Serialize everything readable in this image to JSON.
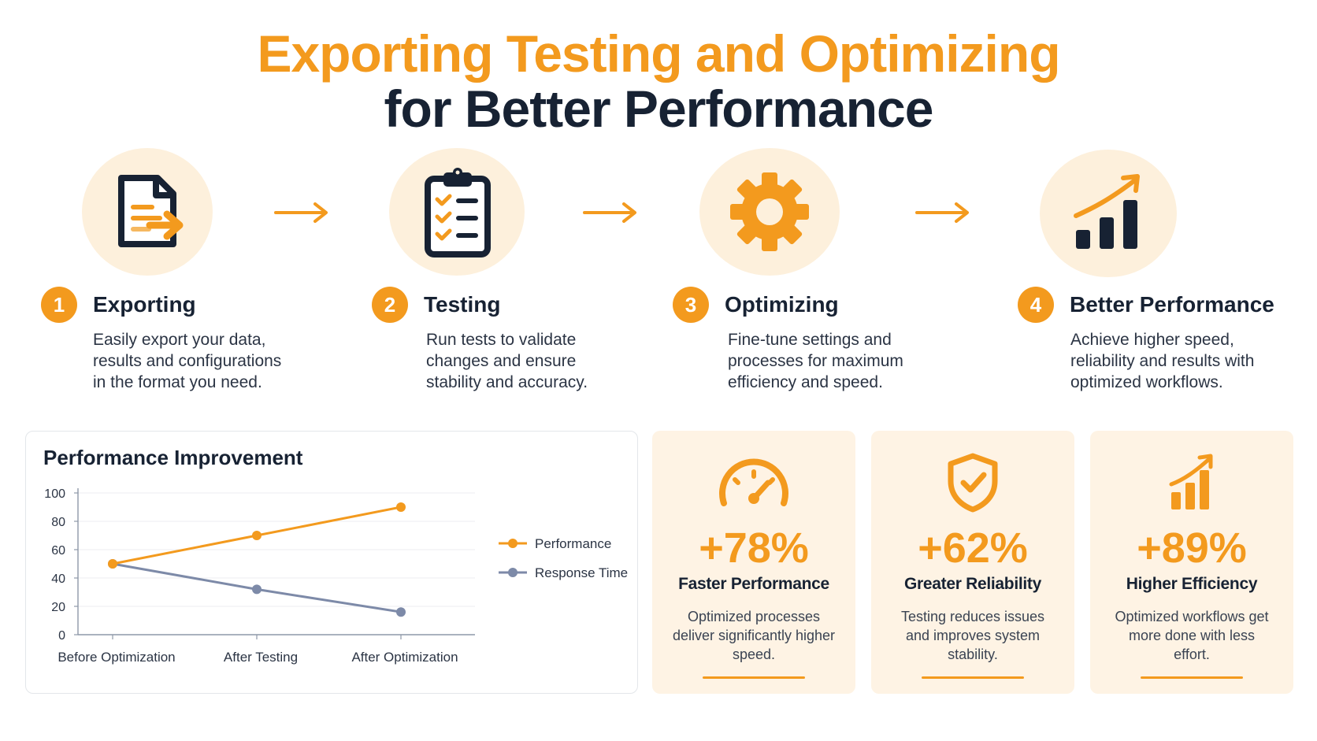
{
  "title": {
    "line1": "Exporting Testing and Optimizing",
    "line2": "for Better Performance"
  },
  "steps": [
    {
      "number": "1",
      "title": "Exporting",
      "icon": "document-export-icon",
      "description": "Easily export your data, results and configurations in the format you need."
    },
    {
      "number": "2",
      "title": "Testing",
      "icon": "clipboard-checklist-icon",
      "description": "Run tests to validate changes and ensure stability and accuracy."
    },
    {
      "number": "3",
      "title": "Optimizing",
      "icon": "gear-icon",
      "description": "Fine-tune settings and processes for maximum efficiency and speed."
    },
    {
      "number": "4",
      "title": "Better Performance",
      "icon": "growth-chart-icon",
      "description": "Achieve higher speed, reliability and results with optimized workflows."
    }
  ],
  "chart_data": {
    "type": "line",
    "title": "Performance Improvement",
    "categories": [
      "Before Optimization",
      "After Testing",
      "After Optimization"
    ],
    "series": [
      {
        "name": "Performance",
        "values": [
          50,
          70,
          90
        ],
        "color": "#f39a1e"
      },
      {
        "name": "Response Time",
        "values": [
          50,
          32,
          16
        ],
        "color": "#7d8aa8"
      }
    ],
    "ylim": [
      0,
      100
    ],
    "yticks": [
      0,
      20,
      40,
      60,
      80,
      100
    ],
    "grid": true,
    "legend": "right"
  },
  "stats": [
    {
      "value": "+78%",
      "label": "Faster Performance",
      "icon": "speedometer-icon",
      "description": "Optimized processes deliver significantly higher speed."
    },
    {
      "value": "+62%",
      "label": "Greater Reliability",
      "icon": "shield-check-icon",
      "description": "Testing reduces issues and improves system stability."
    },
    {
      "value": "+89%",
      "label": "Higher Efficiency",
      "icon": "bar-growth-icon",
      "description": "Optimized workflows get more done with less effort."
    }
  ],
  "colors": {
    "accent": "#f39a1e",
    "dark": "#172233",
    "soft": "#fdf0dc"
  }
}
